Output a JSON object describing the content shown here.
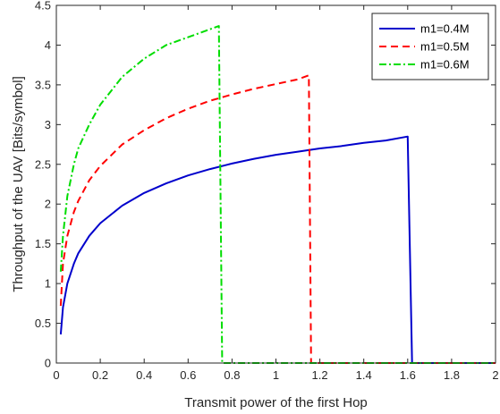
{
  "chart_data": {
    "type": "line",
    "xlabel": "Transmit power of the first Hop",
    "ylabel": "Throughput of the UAV [Bits/symbol]",
    "xlim": [
      0,
      2
    ],
    "ylim": [
      0,
      4.5
    ],
    "xticks": [
      "0",
      "0.2",
      "0.4",
      "0.6",
      "0.8",
      "1",
      "1.2",
      "1.4",
      "1.6",
      "1.8",
      "2"
    ],
    "yticks": [
      "0",
      "0.5",
      "1",
      "1.5",
      "2",
      "2.5",
      "3",
      "3.5",
      "4",
      "4.5"
    ],
    "grid": false,
    "legend_position": "top-right",
    "series": [
      {
        "name": "m1=0.4M",
        "color": "#0000CC",
        "style": "solid",
        "x": [
          0.02,
          0.03,
          0.05,
          0.08,
          0.1,
          0.15,
          0.2,
          0.3,
          0.4,
          0.5,
          0.6,
          0.7,
          0.8,
          0.9,
          1.0,
          1.1,
          1.2,
          1.3,
          1.4,
          1.5,
          1.6,
          1.62,
          1.63,
          1.8,
          2.0
        ],
        "y": [
          0.36,
          0.7,
          1.0,
          1.25,
          1.38,
          1.6,
          1.76,
          1.98,
          2.14,
          2.26,
          2.36,
          2.44,
          2.51,
          2.57,
          2.62,
          2.66,
          2.7,
          2.73,
          2.77,
          2.8,
          2.85,
          0.0,
          0.0,
          0.0,
          0.0
        ]
      },
      {
        "name": "m1=0.5M",
        "color": "#FF0000",
        "style": "dashed",
        "x": [
          0.02,
          0.03,
          0.05,
          0.08,
          0.1,
          0.15,
          0.2,
          0.3,
          0.4,
          0.5,
          0.6,
          0.7,
          0.8,
          0.9,
          1.0,
          1.1,
          1.15,
          1.16,
          1.17,
          1.5,
          2.0
        ],
        "y": [
          0.72,
          1.25,
          1.6,
          1.9,
          2.04,
          2.3,
          2.48,
          2.75,
          2.93,
          3.08,
          3.2,
          3.3,
          3.38,
          3.45,
          3.51,
          3.57,
          3.62,
          0.0,
          0.0,
          0.0,
          0.0
        ]
      },
      {
        "name": "m1=0.6M",
        "color": "#00DD00",
        "style": "dashdot",
        "x": [
          0.02,
          0.03,
          0.05,
          0.08,
          0.1,
          0.15,
          0.2,
          0.3,
          0.4,
          0.5,
          0.6,
          0.7,
          0.74,
          0.755,
          0.77,
          1.0,
          1.5,
          2.0
        ],
        "y": [
          1.15,
          1.6,
          2.1,
          2.5,
          2.7,
          3.0,
          3.25,
          3.6,
          3.83,
          4.0,
          4.1,
          4.2,
          4.24,
          0.0,
          0.0,
          0.0,
          0.0,
          0.0
        ]
      }
    ]
  }
}
